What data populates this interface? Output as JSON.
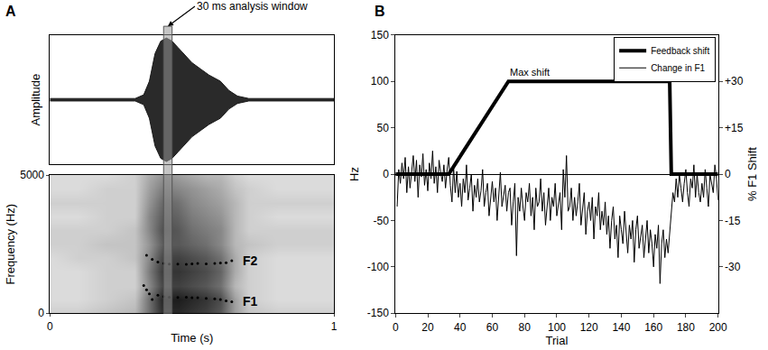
{
  "chart_data": [
    {
      "panel_label": "A",
      "type": "area",
      "y_label": "Amplitude",
      "x": [
        0,
        0.3,
        0.33,
        0.35,
        0.37,
        0.39,
        0.41,
        0.43,
        0.45,
        0.48,
        0.5,
        0.53,
        0.56,
        0.6,
        0.63,
        0.66,
        0.7,
        1
      ],
      "series": [
        {
          "values": [
            0.02,
            0.02,
            0.08,
            0.3,
            0.75,
            0.95,
            1.0,
            0.95,
            0.85,
            0.7,
            0.6,
            0.5,
            0.4,
            0.3,
            0.15,
            0.06,
            0.02,
            0.02
          ]
        },
        {
          "values": [
            -0.02,
            -0.02,
            -0.08,
            -0.3,
            -0.75,
            -0.95,
            -1.0,
            -0.95,
            -0.85,
            -0.7,
            -0.6,
            -0.5,
            -0.4,
            -0.3,
            -0.15,
            -0.06,
            -0.02,
            -0.02
          ]
        }
      ],
      "xlim": [
        0,
        1
      ],
      "ylim": [
        -1.05,
        1.05
      ],
      "tick_labels": false,
      "annotations": [
        {
          "text": "30 ms analysis window",
          "x": 0.415
        }
      ],
      "analysis_window": [
        0.4,
        0.43
      ]
    },
    {
      "type": "heatmap",
      "x_label": "Time (s)",
      "y_label": "Frequency (Hz)",
      "x": [
        0,
        0.1,
        0.2,
        0.3,
        0.35,
        0.4,
        0.45,
        0.5,
        0.55,
        0.6,
        0.65,
        0.7,
        0.8,
        0.9,
        1.0
      ],
      "y": [
        0,
        500,
        1000,
        1500,
        2000,
        2500,
        3000,
        3500,
        4000,
        4500,
        5000
      ],
      "cells": [
        [
          0.2,
          0.2,
          0.25,
          0.3,
          0.6,
          0.9,
          0.9,
          0.85,
          0.8,
          0.7,
          0.4,
          0.25,
          0.2,
          0.2,
          0.2
        ],
        [
          0.15,
          0.15,
          0.2,
          0.25,
          0.6,
          0.95,
          0.95,
          0.9,
          0.85,
          0.75,
          0.4,
          0.2,
          0.15,
          0.15,
          0.15
        ],
        [
          0.15,
          0.15,
          0.2,
          0.2,
          0.5,
          0.8,
          0.8,
          0.75,
          0.7,
          0.6,
          0.3,
          0.2,
          0.15,
          0.15,
          0.15
        ],
        [
          0.15,
          0.15,
          0.2,
          0.2,
          0.55,
          0.85,
          0.85,
          0.8,
          0.75,
          0.65,
          0.35,
          0.2,
          0.15,
          0.15,
          0.15
        ],
        [
          0.15,
          0.2,
          0.2,
          0.25,
          0.5,
          0.8,
          0.8,
          0.75,
          0.7,
          0.6,
          0.35,
          0.2,
          0.15,
          0.15,
          0.15
        ],
        [
          0.2,
          0.2,
          0.25,
          0.25,
          0.45,
          0.7,
          0.7,
          0.65,
          0.6,
          0.5,
          0.3,
          0.25,
          0.2,
          0.2,
          0.2
        ],
        [
          0.2,
          0.2,
          0.2,
          0.25,
          0.5,
          0.75,
          0.7,
          0.6,
          0.55,
          0.5,
          0.3,
          0.2,
          0.2,
          0.2,
          0.2
        ],
        [
          0.15,
          0.15,
          0.2,
          0.2,
          0.5,
          0.7,
          0.65,
          0.55,
          0.5,
          0.45,
          0.3,
          0.2,
          0.15,
          0.15,
          0.15
        ],
        [
          0.2,
          0.2,
          0.2,
          0.2,
          0.45,
          0.65,
          0.6,
          0.5,
          0.45,
          0.4,
          0.3,
          0.2,
          0.2,
          0.2,
          0.2
        ],
        [
          0.15,
          0.15,
          0.2,
          0.2,
          0.4,
          0.55,
          0.5,
          0.45,
          0.4,
          0.35,
          0.25,
          0.2,
          0.15,
          0.15,
          0.15
        ],
        [
          0.15,
          0.15,
          0.15,
          0.2,
          0.35,
          0.45,
          0.4,
          0.35,
          0.3,
          0.3,
          0.2,
          0.15,
          0.15,
          0.15,
          0.15
        ]
      ],
      "zlim": [
        0,
        1
      ],
      "xlim": [
        0,
        1
      ],
      "ylim": [
        0,
        5000
      ],
      "xticks": [
        0,
        1
      ],
      "yticks": [
        0,
        5000
      ],
      "series": [
        {
          "name": "F2",
          "type": "scatter",
          "marker": "dot",
          "x": [
            0.34,
            0.36,
            0.38,
            0.4,
            0.42,
            0.45,
            0.48,
            0.5,
            0.52,
            0.55,
            0.58,
            0.6,
            0.62,
            0.64
          ],
          "values": [
            2100,
            1950,
            1850,
            1800,
            1780,
            1780,
            1770,
            1790,
            1800,
            1790,
            1800,
            1820,
            1830,
            1900
          ]
        },
        {
          "name": "F1",
          "type": "scatter",
          "marker": "dot",
          "x": [
            0.33,
            0.34,
            0.35,
            0.36,
            0.38,
            0.4,
            0.42,
            0.45,
            0.48,
            0.5,
            0.52,
            0.55,
            0.58,
            0.6,
            0.62,
            0.64
          ],
          "values": [
            1000,
            850,
            700,
            500,
            650,
            600,
            580,
            570,
            580,
            560,
            560,
            540,
            520,
            500,
            450,
            420
          ]
        }
      ],
      "analysis_window": [
        0.4,
        0.43
      ]
    },
    {
      "panel_label": "B",
      "type": "line",
      "x_label": "Trial",
      "y_label": "Hz",
      "y2_label": "% F1 Shift",
      "x": [
        1,
        2,
        3,
        4,
        5,
        6,
        7,
        8,
        9,
        10,
        11,
        12,
        13,
        14,
        15,
        16,
        17,
        18,
        19,
        20,
        21,
        22,
        23,
        24,
        25,
        26,
        27,
        28,
        29,
        30,
        31,
        32,
        33,
        34,
        35,
        36,
        37,
        38,
        39,
        40,
        41,
        42,
        43,
        44,
        45,
        46,
        47,
        48,
        49,
        50,
        51,
        52,
        53,
        54,
        55,
        56,
        57,
        58,
        59,
        60,
        61,
        62,
        63,
        64,
        65,
        66,
        67,
        68,
        69,
        70,
        71,
        72,
        73,
        74,
        75,
        76,
        77,
        78,
        79,
        80,
        81,
        82,
        83,
        84,
        85,
        86,
        87,
        88,
        89,
        90,
        91,
        92,
        93,
        94,
        95,
        96,
        97,
        98,
        99,
        100,
        101,
        102,
        103,
        104,
        105,
        106,
        107,
        108,
        109,
        110,
        111,
        112,
        113,
        114,
        115,
        116,
        117,
        118,
        119,
        120,
        121,
        122,
        123,
        124,
        125,
        126,
        127,
        128,
        129,
        130,
        131,
        132,
        133,
        134,
        135,
        136,
        137,
        138,
        139,
        140,
        141,
        142,
        143,
        144,
        145,
        146,
        147,
        148,
        149,
        150,
        151,
        152,
        153,
        154,
        155,
        156,
        157,
        158,
        159,
        160,
        161,
        162,
        163,
        164,
        165,
        166,
        167,
        168,
        169,
        170,
        171,
        172,
        173,
        174,
        175,
        176,
        177,
        178,
        179,
        180,
        181,
        182,
        183,
        184,
        185,
        186,
        187,
        188,
        189,
        190,
        191,
        192,
        193,
        194,
        195,
        196,
        197,
        198,
        199,
        200
      ],
      "series": [
        {
          "name": "Change in F1",
          "color": "#000000",
          "line_style": "thin",
          "values": [
            -35,
            5,
            -10,
            12,
            -5,
            18,
            -20,
            8,
            -15,
            3,
            20,
            -8,
            15,
            -25,
            10,
            -3,
            22,
            -12,
            5,
            -18,
            12,
            -5,
            25,
            -10,
            8,
            -20,
            15,
            2,
            -8,
            10,
            -15,
            5,
            18,
            -12,
            -30,
            8,
            -20,
            3,
            -25,
            -10,
            -35,
            -5,
            -20,
            10,
            -28,
            -15,
            0,
            -40,
            -12,
            -25,
            -5,
            -30,
            -18,
            5,
            -35,
            -20,
            -10,
            -45,
            -25,
            -8,
            -30,
            -15,
            -50,
            -20,
            2,
            -35,
            -25,
            -12,
            -40,
            -20,
            -15,
            -55,
            -30,
            -10,
            -88,
            -25,
            -40,
            -15,
            -35,
            -50,
            -20,
            -30,
            -10,
            -45,
            -25,
            -60,
            -15,
            -35,
            -30,
            -5,
            -40,
            -20,
            -55,
            -30,
            -15,
            -50,
            -25,
            -35,
            -10,
            -45,
            -30,
            -20,
            -60,
            5,
            -25,
            20,
            -40,
            -35,
            -15,
            -50,
            -25,
            -45,
            -30,
            -10,
            -55,
            -35,
            -20,
            -65,
            -40,
            -30,
            -50,
            -25,
            -70,
            -35,
            -45,
            -20,
            -60,
            -40,
            -55,
            -30,
            -65,
            -45,
            -80,
            -50,
            -35,
            -70,
            -55,
            -90,
            -45,
            -60,
            -75,
            -40,
            -65,
            -85,
            -55,
            -70,
            -50,
            -95,
            -60,
            -45,
            -80,
            -65,
            -55,
            -90,
            -70,
            -50,
            -85,
            -60,
            -75,
            -100,
            -65,
            -80,
            -55,
            -118,
            -75,
            -60,
            -90,
            -70,
            -85,
            -65,
            -40,
            -20,
            -30,
            -5,
            -25,
            0,
            -15,
            -30,
            -10,
            5,
            -20,
            -35,
            -5,
            -15,
            10,
            -25,
            0,
            -20,
            -30,
            -10,
            -25,
            5,
            -15,
            -35,
            0,
            -10,
            -20,
            10,
            -5,
            -28
          ]
        },
        {
          "name": "Feedback shift",
          "color": "#000000",
          "line_style": "thick",
          "x": [
            0,
            33,
            70,
            170,
            171,
            200
          ],
          "values": [
            0,
            0,
            100,
            100,
            0,
            0
          ]
        }
      ],
      "xlim": [
        0,
        200
      ],
      "xticks": [
        0,
        20,
        40,
        60,
        80,
        100,
        120,
        140,
        160,
        180,
        200
      ],
      "ylim": [
        -150,
        150
      ],
      "yticks": [
        -150,
        -100,
        -50,
        0,
        50,
        100,
        150
      ],
      "y2lim": [
        -45,
        45
      ],
      "y2ticks": [
        -30,
        -15,
        0,
        {
          "value": 15,
          "label": "+15"
        },
        {
          "value": 30,
          "label": "+30"
        }
      ],
      "grid": false,
      "legend": "upper right",
      "annotations": [
        {
          "text": "Max shift",
          "x": 70,
          "y": 100
        }
      ]
    }
  ]
}
